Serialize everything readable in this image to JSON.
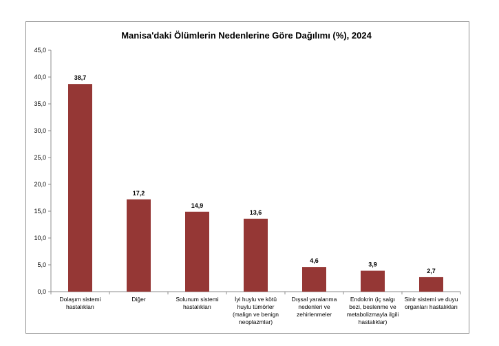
{
  "chart_data": {
    "type": "bar",
    "title": "Manisa'daki Ölümlerin Nedenlerine Göre Dağılımı (%), 2024",
    "xlabel": "",
    "ylabel": "",
    "ylim": [
      0,
      45
    ],
    "yticks": [
      "0,0",
      "5,0",
      "10,0",
      "15,0",
      "20,0",
      "25,0",
      "30,0",
      "35,0",
      "40,0",
      "45,0"
    ],
    "grid": false,
    "legend": "none",
    "bar_color": "#953735",
    "categories": [
      [
        "Dolaşım sistemi",
        "hastalıkları"
      ],
      [
        "Diğer"
      ],
      [
        "Solunum sistemi",
        "hastalıkları"
      ],
      [
        "İyi huylu ve kötü",
        "huylu tümörler",
        "(malign ve benign",
        "neoplazmlar)"
      ],
      [
        "Dışsal yaralanma",
        "nedenleri ve",
        "zehirlenmeler"
      ],
      [
        "Endokrin (iç salgı",
        "bezi, beslenme ve",
        "metabolizmayla ilgili",
        "hastalıklar)"
      ],
      [
        "Sinir sistemi ve duyu",
        "organları hastalıkları"
      ]
    ],
    "values": [
      38.7,
      17.2,
      14.9,
      13.6,
      4.6,
      3.9,
      2.7
    ],
    "value_labels": [
      "38,7",
      "17,2",
      "14,9",
      "13,6",
      "4,6",
      "3,9",
      "2,7"
    ]
  }
}
